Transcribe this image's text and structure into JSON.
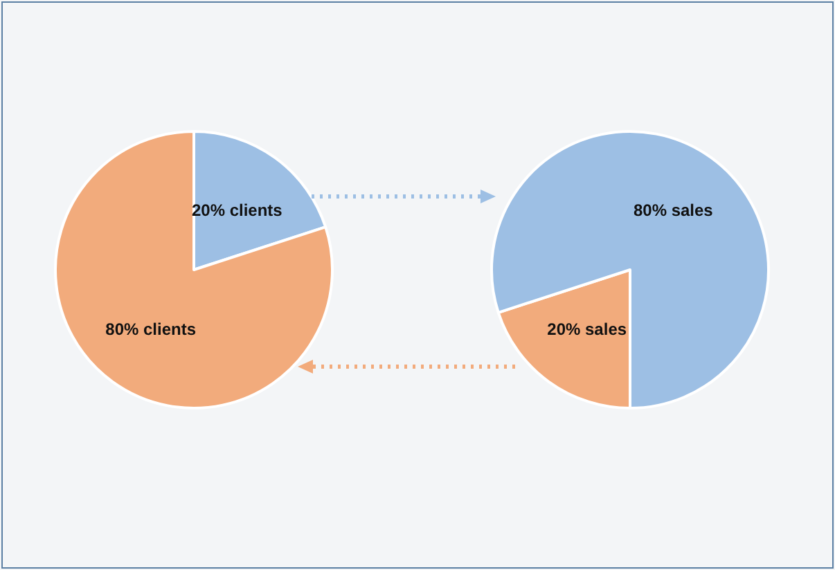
{
  "chart_data": [
    {
      "type": "pie",
      "categories": [
        "20% clients",
        "80% clients"
      ],
      "values": [
        20,
        80
      ],
      "colors": [
        "#9dbfe4",
        "#f2ab7c"
      ]
    },
    {
      "type": "pie",
      "categories": [
        "20% sales",
        "80% sales"
      ],
      "values": [
        20,
        80
      ],
      "colors": [
        "#f2ab7c",
        "#9dbfe4"
      ]
    }
  ]
}
